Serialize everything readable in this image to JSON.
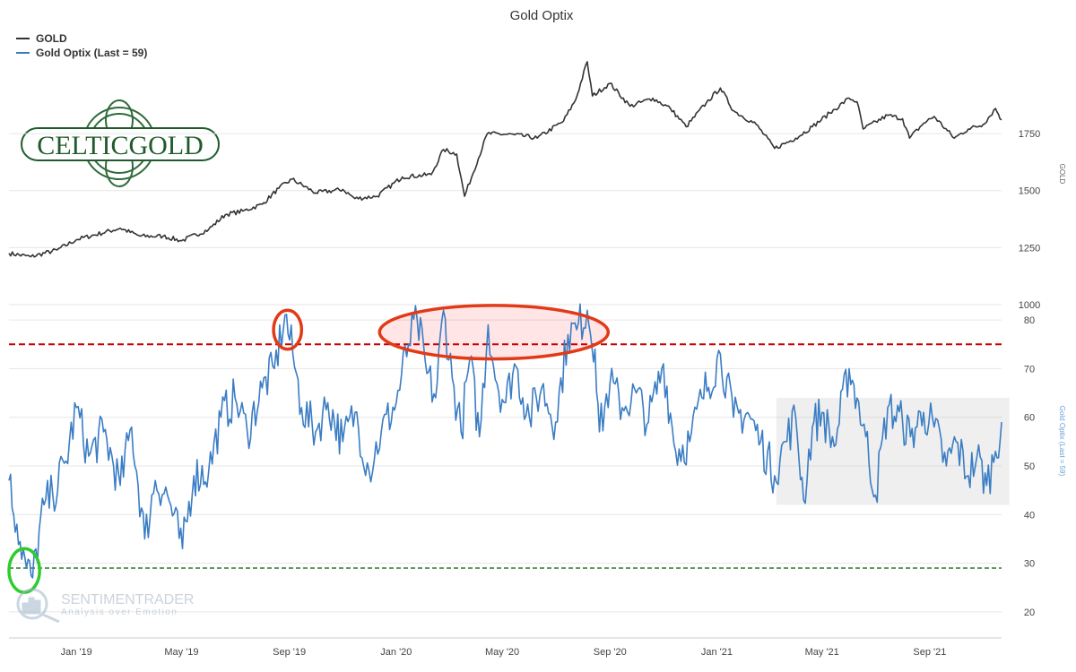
{
  "chart_data": {
    "type": "line",
    "title": "Gold Optix",
    "legend": {
      "placement": "top-left",
      "items": [
        {
          "label": "GOLD",
          "color": "#333333"
        },
        {
          "label": "Gold Optix (Last = 59)",
          "color": "#3b7dc4"
        }
      ]
    },
    "x_tick_labels": [
      "Jan '19",
      "May '19",
      "Sep '19",
      "Jan '20",
      "May '20",
      "Sep '20",
      "Jan '21",
      "May '21",
      "Sep '21"
    ],
    "x_range": [
      "2018-10-16",
      "2021-11-22"
    ],
    "panels": [
      {
        "series": "GOLD",
        "axis_side": "right",
        "axis_title": "GOLD",
        "y_ticks": [
          1000,
          1250,
          1500,
          1750
        ],
        "ylim": [
          1000,
          2100
        ],
        "color": "#333333",
        "anchors": [
          [
            "2018-10-16",
            1225
          ],
          [
            "2018-11-10",
            1210
          ],
          [
            "2018-12-10",
            1240
          ],
          [
            "2019-01-01",
            1285
          ],
          [
            "2019-02-20",
            1335
          ],
          [
            "2019-03-15",
            1300
          ],
          [
            "2019-04-10",
            1300
          ],
          [
            "2019-05-01",
            1280
          ],
          [
            "2019-06-01",
            1330
          ],
          [
            "2019-06-20",
            1395
          ],
          [
            "2019-07-10",
            1410
          ],
          [
            "2019-08-01",
            1440
          ],
          [
            "2019-08-20",
            1510
          ],
          [
            "2019-09-04",
            1550
          ],
          [
            "2019-10-01",
            1490
          ],
          [
            "2019-11-01",
            1505
          ],
          [
            "2019-11-15",
            1465
          ],
          [
            "2019-12-10",
            1475
          ],
          [
            "2020-01-08",
            1560
          ],
          [
            "2020-02-10",
            1570
          ],
          [
            "2020-02-24",
            1680
          ],
          [
            "2020-03-10",
            1660
          ],
          [
            "2020-03-19",
            1475
          ],
          [
            "2020-04-14",
            1750
          ],
          [
            "2020-05-15",
            1745
          ],
          [
            "2020-06-10",
            1730
          ],
          [
            "2020-07-10",
            1805
          ],
          [
            "2020-07-24",
            1900
          ],
          [
            "2020-08-06",
            2065
          ],
          [
            "2020-08-12",
            1915
          ],
          [
            "2020-09-01",
            1970
          ],
          [
            "2020-09-24",
            1870
          ],
          [
            "2020-10-20",
            1905
          ],
          [
            "2020-11-09",
            1860
          ],
          [
            "2020-11-27",
            1780
          ],
          [
            "2020-12-20",
            1885
          ],
          [
            "2021-01-05",
            1950
          ],
          [
            "2021-01-20",
            1850
          ],
          [
            "2021-02-15",
            1790
          ],
          [
            "2021-03-08",
            1685
          ],
          [
            "2021-04-01",
            1730
          ],
          [
            "2021-04-20",
            1780
          ],
          [
            "2021-05-10",
            1840
          ],
          [
            "2021-06-01",
            1905
          ],
          [
            "2021-06-10",
            1890
          ],
          [
            "2021-06-17",
            1770
          ],
          [
            "2021-07-15",
            1830
          ],
          [
            "2021-08-01",
            1815
          ],
          [
            "2021-08-09",
            1730
          ],
          [
            "2021-08-25",
            1795
          ],
          [
            "2021-09-06",
            1825
          ],
          [
            "2021-09-29",
            1730
          ],
          [
            "2021-10-15",
            1770
          ],
          [
            "2021-11-01",
            1790
          ],
          [
            "2021-11-15",
            1860
          ],
          [
            "2021-11-22",
            1810
          ]
        ]
      },
      {
        "series": "Gold Optix (Last = 59)",
        "axis_side": "right",
        "axis_title": "Gold Optix (Last = 59)",
        "y_ticks": [
          20,
          30,
          40,
          50,
          60,
          70,
          80
        ],
        "ylim": [
          15,
          85
        ],
        "color": "#3b7dc4",
        "last": 59,
        "anchors": [
          [
            "2018-10-16",
            47
          ],
          [
            "2018-10-25",
            38
          ],
          [
            "2018-11-05",
            29
          ],
          [
            "2018-11-12",
            27
          ],
          [
            "2018-11-25",
            42
          ],
          [
            "2018-12-05",
            44
          ],
          [
            "2018-12-20",
            51
          ],
          [
            "2019-01-01",
            62
          ],
          [
            "2019-01-15",
            52
          ],
          [
            "2019-02-01",
            57
          ],
          [
            "2019-02-20",
            46
          ],
          [
            "2019-03-05",
            58
          ],
          [
            "2019-03-20",
            35
          ],
          [
            "2019-04-01",
            47
          ],
          [
            "2019-04-15",
            44
          ],
          [
            "2019-05-02",
            33
          ],
          [
            "2019-05-15",
            48
          ],
          [
            "2019-06-01",
            49
          ],
          [
            "2019-06-15",
            60
          ],
          [
            "2019-07-01",
            64
          ],
          [
            "2019-07-15",
            57
          ],
          [
            "2019-08-01",
            66
          ],
          [
            "2019-08-15",
            70
          ],
          [
            "2019-08-27",
            81
          ],
          [
            "2019-09-05",
            73
          ],
          [
            "2019-09-15",
            62
          ],
          [
            "2019-10-01",
            57
          ],
          [
            "2019-10-15",
            63
          ],
          [
            "2019-11-01",
            55
          ],
          [
            "2019-11-15",
            61
          ],
          [
            "2019-12-01",
            49
          ],
          [
            "2019-12-15",
            57
          ],
          [
            "2020-01-01",
            63
          ],
          [
            "2020-01-15",
            75
          ],
          [
            "2020-01-25",
            80
          ],
          [
            "2020-02-05",
            69
          ],
          [
            "2020-02-15",
            64
          ],
          [
            "2020-02-24",
            82
          ],
          [
            "2020-03-05",
            68
          ],
          [
            "2020-03-15",
            57
          ],
          [
            "2020-03-25",
            72
          ],
          [
            "2020-04-05",
            56
          ],
          [
            "2020-04-15",
            79
          ],
          [
            "2020-04-25",
            67
          ],
          [
            "2020-05-05",
            63
          ],
          [
            "2020-05-15",
            71
          ],
          [
            "2020-06-01",
            60
          ],
          [
            "2020-06-15",
            66
          ],
          [
            "2020-07-01",
            59
          ],
          [
            "2020-07-15",
            77
          ],
          [
            "2020-07-25",
            78
          ],
          [
            "2020-08-06",
            82
          ],
          [
            "2020-08-15",
            74
          ],
          [
            "2020-08-20",
            57
          ],
          [
            "2020-09-01",
            67
          ],
          [
            "2020-09-15",
            62
          ],
          [
            "2020-10-01",
            65
          ],
          [
            "2020-10-15",
            59
          ],
          [
            "2020-11-01",
            71
          ],
          [
            "2020-11-15",
            53
          ],
          [
            "2020-12-01",
            55
          ],
          [
            "2020-12-15",
            64
          ],
          [
            "2021-01-05",
            73
          ],
          [
            "2021-01-20",
            60
          ],
          [
            "2021-02-05",
            61
          ],
          [
            "2021-02-20",
            55
          ],
          [
            "2021-03-08",
            48
          ],
          [
            "2021-03-20",
            55
          ],
          [
            "2021-04-01",
            60
          ],
          [
            "2021-04-10",
            43
          ],
          [
            "2021-04-20",
            58
          ],
          [
            "2021-05-01",
            61
          ],
          [
            "2021-05-15",
            54
          ],
          [
            "2021-06-01",
            70
          ],
          [
            "2021-06-10",
            64
          ],
          [
            "2021-06-20",
            56
          ],
          [
            "2021-07-01",
            44
          ],
          [
            "2021-07-15",
            62
          ],
          [
            "2021-08-01",
            59
          ],
          [
            "2021-08-10",
            56
          ],
          [
            "2021-08-25",
            61
          ],
          [
            "2021-09-06",
            58
          ],
          [
            "2021-09-20",
            50
          ],
          [
            "2021-10-01",
            55
          ],
          [
            "2021-10-15",
            48
          ],
          [
            "2021-10-25",
            52
          ],
          [
            "2021-11-05",
            46
          ],
          [
            "2021-11-15",
            53
          ],
          [
            "2021-11-22",
            59
          ]
        ]
      }
    ],
    "reference_lines": [
      {
        "panel": 1,
        "value": 75,
        "color": "#cc0000",
        "style": "dashed"
      },
      {
        "panel": 1,
        "value": 29,
        "color": "#2a7a2a",
        "style": "dashed"
      }
    ],
    "annotations": [
      {
        "shape": "ellipse",
        "panel": 1,
        "x_from": "2019-08-14",
        "x_to": "2019-09-15",
        "y_from": 74,
        "y_to": 82,
        "stroke": "#e23a17",
        "fill": "none"
      },
      {
        "shape": "ellipse",
        "panel": 1,
        "x_from": "2019-12-13",
        "x_to": "2020-08-30",
        "y_from": 72,
        "y_to": 83,
        "stroke": "#e23a17",
        "fill": "#ff0000"
      },
      {
        "shape": "ellipse",
        "panel": 1,
        "x_from": "2018-10-16",
        "x_to": "2018-11-20",
        "y_from": 24,
        "y_to": 33,
        "stroke": "#2ecc2e",
        "fill": "none"
      },
      {
        "shape": "rect",
        "panel": 1,
        "x_from": "2021-03-10",
        "x_to": "2021-12-01",
        "y_from": 42,
        "y_to": 64,
        "stroke": "none",
        "fill": "#bfbfbf"
      }
    ],
    "grid": true
  },
  "branding": {
    "logo_text": "CELTICGOLD",
    "watermark_name": "SENTIMENTRADER",
    "watermark_tagline": "Analysis over Emotion"
  }
}
